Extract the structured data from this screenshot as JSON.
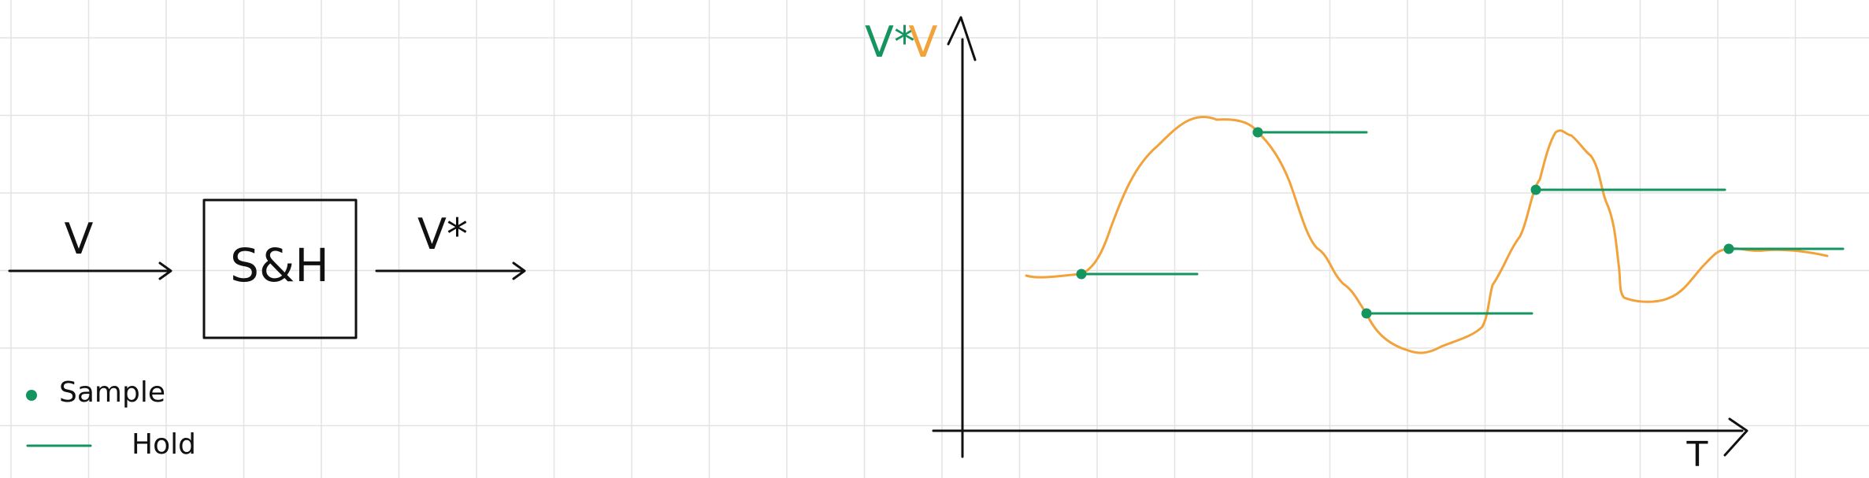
{
  "block": {
    "input_label": "V",
    "box_label": "S&H",
    "output_label": "V*"
  },
  "legend": {
    "sample_label": "Sample",
    "hold_label": "Hold"
  },
  "plot": {
    "y_label_sampled": "V*",
    "y_label_signal": "V",
    "x_label": "T"
  },
  "colors": {
    "signal": "#f2a23a",
    "sample_hold": "#14955f",
    "ink": "#111111",
    "grid": "#e3e3e3"
  }
}
